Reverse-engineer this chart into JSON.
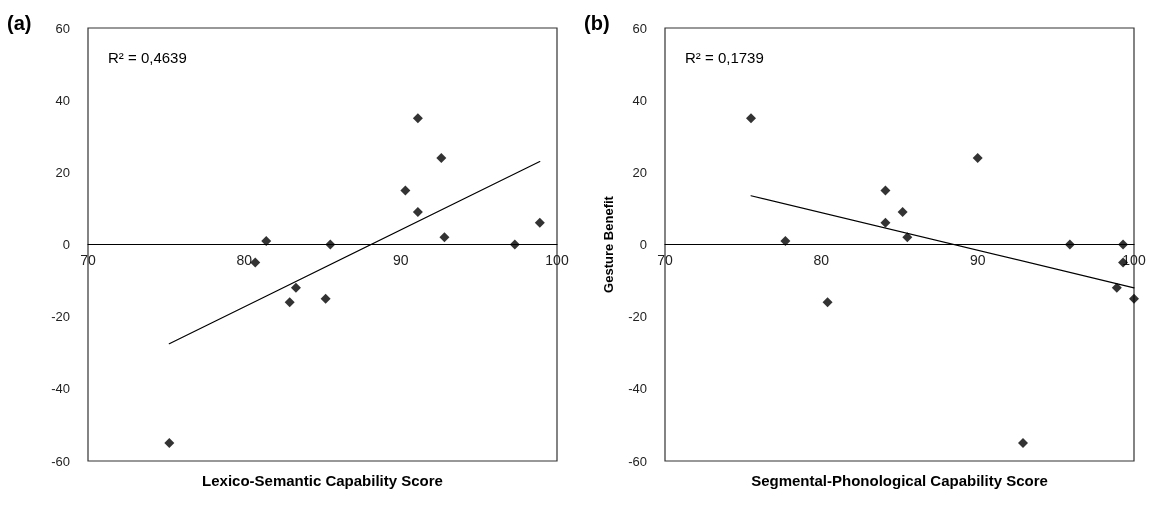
{
  "chart_data": [
    {
      "type": "scatter",
      "title": "(a)",
      "xlabel": "Lexico-Semantic Capability Score",
      "annotations": [
        "R² = 0,4639"
      ],
      "marker": "diamond",
      "xlim": [
        70,
        100
      ],
      "xticks": [
        70,
        80,
        90,
        100
      ],
      "ylim": [
        -60,
        60
      ],
      "yticks": [
        -60,
        -40,
        -20,
        0,
        20,
        40,
        60
      ],
      "series": [
        {
          "color": "#000000",
          "x": [
            75.2,
            80.7,
            81.4,
            82.9,
            83.3,
            85.2,
            85.5,
            90.3,
            91.1,
            91.1,
            92.6,
            92.8,
            97.3,
            98.9
          ],
          "values": [
            -55,
            -5,
            1,
            -16,
            -12,
            -15,
            0,
            15,
            35,
            9,
            24,
            2,
            0,
            6
          ]
        },
        {
          "type": "line",
          "marker": "none",
          "color": "#000000",
          "x": [
            75.2,
            98.9
          ],
          "values": [
            -27.5,
            23
          ]
        }
      ]
    },
    {
      "type": "scatter",
      "title": "(b)",
      "xlabel": "Segmental-Phonological Capability Score",
      "ylabel": "Gesture Benefit",
      "annotations": [
        "R² = 0,1739"
      ],
      "marker": "diamond",
      "xlim": [
        70,
        100
      ],
      "xticks": [
        70,
        80,
        90,
        100
      ],
      "ylim": [
        -60,
        60
      ],
      "yticks": [
        -60,
        -40,
        -20,
        0,
        20,
        40,
        60
      ],
      "series": [
        {
          "color": "#000000",
          "x": [
            75.5,
            77.7,
            80.4,
            84.1,
            84.1,
            85.2,
            85.5,
            90.0,
            92.9,
            95.9,
            99.3,
            99.3,
            98.9,
            100
          ],
          "values": [
            35,
            1,
            -16,
            15,
            6,
            9,
            2,
            24,
            -55,
            0,
            0,
            -5,
            -12,
            -15
          ]
        },
        {
          "type": "line",
          "marker": "none",
          "color": "#000000",
          "x": [
            75.5,
            100
          ],
          "values": [
            13.5,
            -12
          ]
        }
      ]
    }
  ]
}
